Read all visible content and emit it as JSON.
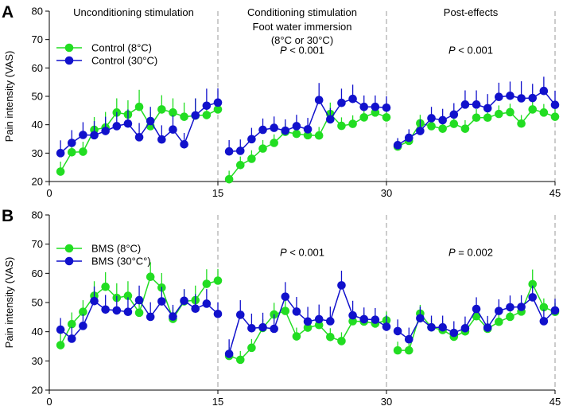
{
  "chart_data": [
    {
      "type": "line",
      "panel_letter": "A",
      "ylabel": "Pain intensity (VAS)",
      "xlim": [
        0,
        45
      ],
      "ylim": [
        20,
        80
      ],
      "x_ticks": [
        0,
        15,
        30,
        45
      ],
      "y_ticks": [
        20,
        30,
        40,
        50,
        60,
        70,
        80
      ],
      "vertical_dividers": [
        15,
        30,
        45
      ],
      "phase_labels": [
        {
          "lines": [
            "Unconditioning stimulation"
          ],
          "x_center": 7.5
        },
        {
          "lines": [
            "Conditioning stimulation",
            "Foot water immersion",
            "(8°C or 30°C)"
          ],
          "x_center": 22.5
        },
        {
          "lines": [
            "Post-effects"
          ],
          "x_center": 37.5
        }
      ],
      "annotations": [
        {
          "prefix": "P",
          "rest": " < 0.001",
          "x": 22.5,
          "y": 65
        },
        {
          "prefix": "P",
          "rest": " < 0.001",
          "x": 37.5,
          "y": 65
        }
      ],
      "legend_position": "top-left",
      "series": [
        {
          "name": "Control  (8°C)",
          "color": "#22dd22",
          "segments": [
            {
              "x": [
                1,
                2,
                3,
                4,
                5,
                6,
                7,
                8,
                9,
                10,
                11,
                12,
                13,
                14,
                15
              ],
              "y": [
                23.5,
                30.3,
                30.5,
                38.2,
                39.0,
                44.3,
                43.6,
                46.3,
                39.5,
                45.4,
                44.3,
                42.8,
                43.2,
                43.4,
                45.4
              ],
              "err": [
                3.5,
                3.5,
                3.5,
                4.5,
                5.5,
                5,
                5,
                6,
                5,
                5,
                5,
                5,
                6,
                4,
                3
              ]
            },
            {
              "x": [
                16,
                17,
                18,
                19,
                20,
                21,
                22,
                23,
                24,
                25,
                26,
                27,
                28,
                29,
                30
              ],
              "y": [
                20.8,
                25.8,
                28.0,
                31.6,
                33.6,
                37.5,
                36.8,
                36.3,
                36.2,
                43.8,
                39.6,
                40.3,
                42.6,
                44.3,
                42.6
              ],
              "err": [
                3,
                3,
                3,
                3,
                3,
                3,
                3,
                3,
                3,
                4,
                3,
                3,
                3,
                3,
                3
              ]
            },
            {
              "x": [
                31,
                32,
                33,
                34,
                35,
                36,
                37,
                38,
                39,
                40,
                41,
                42,
                43,
                44,
                45
              ],
              "y": [
                32.3,
                34.3,
                40.5,
                39.5,
                38.6,
                40.3,
                38.6,
                42.5,
                42.5,
                43.8,
                44.4,
                40.4,
                45.4,
                44.3,
                42.8
              ],
              "err": [
                2.5,
                3,
                3,
                3,
                3,
                3,
                3,
                3,
                3,
                3,
                3,
                3,
                3,
                3,
                3
              ]
            }
          ]
        },
        {
          "name": "Control (30°C)",
          "color": "#1111cc",
          "segments": [
            {
              "x": [
                1,
                2,
                3,
                4,
                5,
                6,
                7,
                8,
                9,
                10,
                11,
                12,
                13,
                14,
                15
              ],
              "y": [
                30.0,
                33.6,
                36.4,
                36.3,
                37.8,
                39.5,
                40.4,
                35.6,
                41.3,
                34.8,
                38.3,
                33.1,
                43.3,
                46.7,
                47.8
              ],
              "err": [
                4.5,
                4.5,
                4.5,
                5,
                5,
                5,
                5,
                5,
                5,
                5,
                5,
                4,
                6,
                6,
                5
              ]
            },
            {
              "x": [
                16,
                17,
                18,
                19,
                20,
                21,
                22,
                23,
                24,
                25,
                26,
                27,
                28,
                29,
                30
              ],
              "y": [
                30.6,
                30.8,
                34.9,
                38.2,
                38.9,
                37.9,
                39.5,
                38.4,
                48.7,
                41.9,
                47.7,
                49.1,
                46.3,
                46.3,
                46.0
              ],
              "err": [
                4,
                4,
                4,
                4,
                4,
                4,
                4,
                4,
                6,
                4,
                5,
                5,
                4,
                4,
                4
              ]
            },
            {
              "x": [
                31,
                32,
                33,
                34,
                35,
                36,
                37,
                38,
                39,
                40,
                41,
                42,
                43,
                44,
                45
              ],
              "y": [
                32.8,
                35.4,
                37.8,
                42.3,
                41.6,
                43.6,
                47.1,
                47.1,
                45.8,
                49.8,
                50.2,
                49.3,
                49.4,
                51.9,
                47.0
              ],
              "err": [
                2.5,
                3,
                4,
                4,
                4,
                4,
                5,
                5,
                5,
                5,
                5,
                6,
                5,
                5,
                5
              ]
            }
          ]
        }
      ]
    },
    {
      "type": "line",
      "panel_letter": "B",
      "ylabel": "Pain intensity (VAS)",
      "xlim": [
        0,
        45
      ],
      "ylim": [
        20,
        80
      ],
      "x_ticks": [
        0,
        15,
        30,
        45
      ],
      "y_ticks": [
        20,
        30,
        40,
        50,
        60,
        70,
        80
      ],
      "vertical_dividers": [
        15,
        30,
        45
      ],
      "phase_labels": [],
      "annotations": [
        {
          "prefix": "P",
          "rest": " < 0.001",
          "x": 22.5,
          "y": 66
        },
        {
          "prefix": "P",
          "rest": " = 0.002",
          "x": 37.5,
          "y": 66
        }
      ],
      "legend_position": "top-left",
      "series": [
        {
          "name": "BMS (8°C)",
          "color": "#22dd22",
          "segments": [
            {
              "x": [
                1,
                2,
                3,
                4,
                5,
                6,
                7,
                8,
                9,
                10,
                11,
                12,
                13,
                14,
                15
              ],
              "y": [
                35.4,
                42.6,
                46.8,
                52.3,
                55.4,
                51.6,
                52.3,
                46.5,
                58.8,
                55.1,
                44.4,
                50.4,
                50.8,
                56.4,
                57.5
              ],
              "err": [
                4,
                4,
                4,
                5,
                5,
                5,
                5,
                5,
                5,
                5,
                4,
                4,
                5,
                5,
                4
              ]
            },
            {
              "x": [
                16,
                17,
                18,
                19,
                20,
                21,
                22,
                23,
                24,
                25,
                26,
                27,
                28,
                29,
                30
              ],
              "y": [
                31.7,
                30.4,
                34.5,
                41.3,
                45.9,
                47.1,
                38.4,
                41.4,
                42.3,
                38.2,
                36.8,
                43.6,
                43.5,
                42.8,
                43.9
              ],
              "err": [
                3,
                3,
                3,
                3,
                4,
                4,
                3,
                3,
                3,
                3,
                3,
                3,
                3,
                3,
                3
              ]
            },
            {
              "x": [
                31,
                32,
                33,
                34,
                35,
                36,
                37,
                38,
                39,
                40,
                41,
                42,
                43,
                44,
                45
              ],
              "y": [
                33.6,
                33.6,
                46.2,
                41.5,
                40.6,
                38.3,
                40.1,
                45.3,
                41.0,
                43.4,
                45.1,
                46.9,
                56.3,
                48.4,
                46.8
              ],
              "err": [
                3,
                3,
                3,
                3,
                3,
                3,
                3,
                3,
                3,
                3,
                3,
                3,
                5,
                3,
                3
              ]
            }
          ]
        },
        {
          "name": "BMS (30°C°)",
          "color": "#1111cc",
          "segments": [
            {
              "x": [
                1,
                2,
                3,
                4,
                5,
                6,
                7,
                8,
                9,
                10,
                11,
                12,
                13,
                14,
                15
              ],
              "y": [
                40.7,
                37.6,
                42.0,
                50.5,
                47.6,
                47.3,
                46.8,
                50.8,
                45.1,
                50.4,
                45.2,
                50.6,
                47.9,
                49.6,
                46.1
              ],
              "err": [
                4,
                4,
                4,
                5,
                5,
                5,
                5,
                5,
                5,
                5,
                4,
                4,
                5,
                5,
                4
              ]
            },
            {
              "x": [
                16,
                17,
                18,
                19,
                20,
                21,
                22,
                23,
                24,
                25,
                26,
                27,
                28,
                29,
                30
              ],
              "y": [
                32.4,
                45.8,
                41.2,
                41.5,
                41.0,
                52.0,
                46.9,
                43.5,
                44.3,
                43.6,
                55.9,
                45.6,
                44.3,
                44.1,
                41.7
              ],
              "err": [
                5,
                5,
                5,
                5,
                5,
                5,
                5,
                5,
                5,
                5,
                5,
                5,
                4,
                4,
                4
              ]
            },
            {
              "x": [
                31,
                32,
                33,
                34,
                35,
                36,
                37,
                38,
                39,
                40,
                41,
                42,
                43,
                44,
                45
              ],
              "y": [
                40.2,
                37.4,
                44.6,
                41.5,
                41.5,
                39.6,
                41.2,
                47.8,
                41.4,
                47.1,
                48.4,
                48.5,
                51.8,
                43.6,
                47.3
              ],
              "err": [
                4,
                4,
                4,
                4,
                4,
                4,
                4,
                4,
                4,
                4,
                4,
                4,
                4,
                4,
                4
              ]
            }
          ]
        }
      ]
    }
  ]
}
